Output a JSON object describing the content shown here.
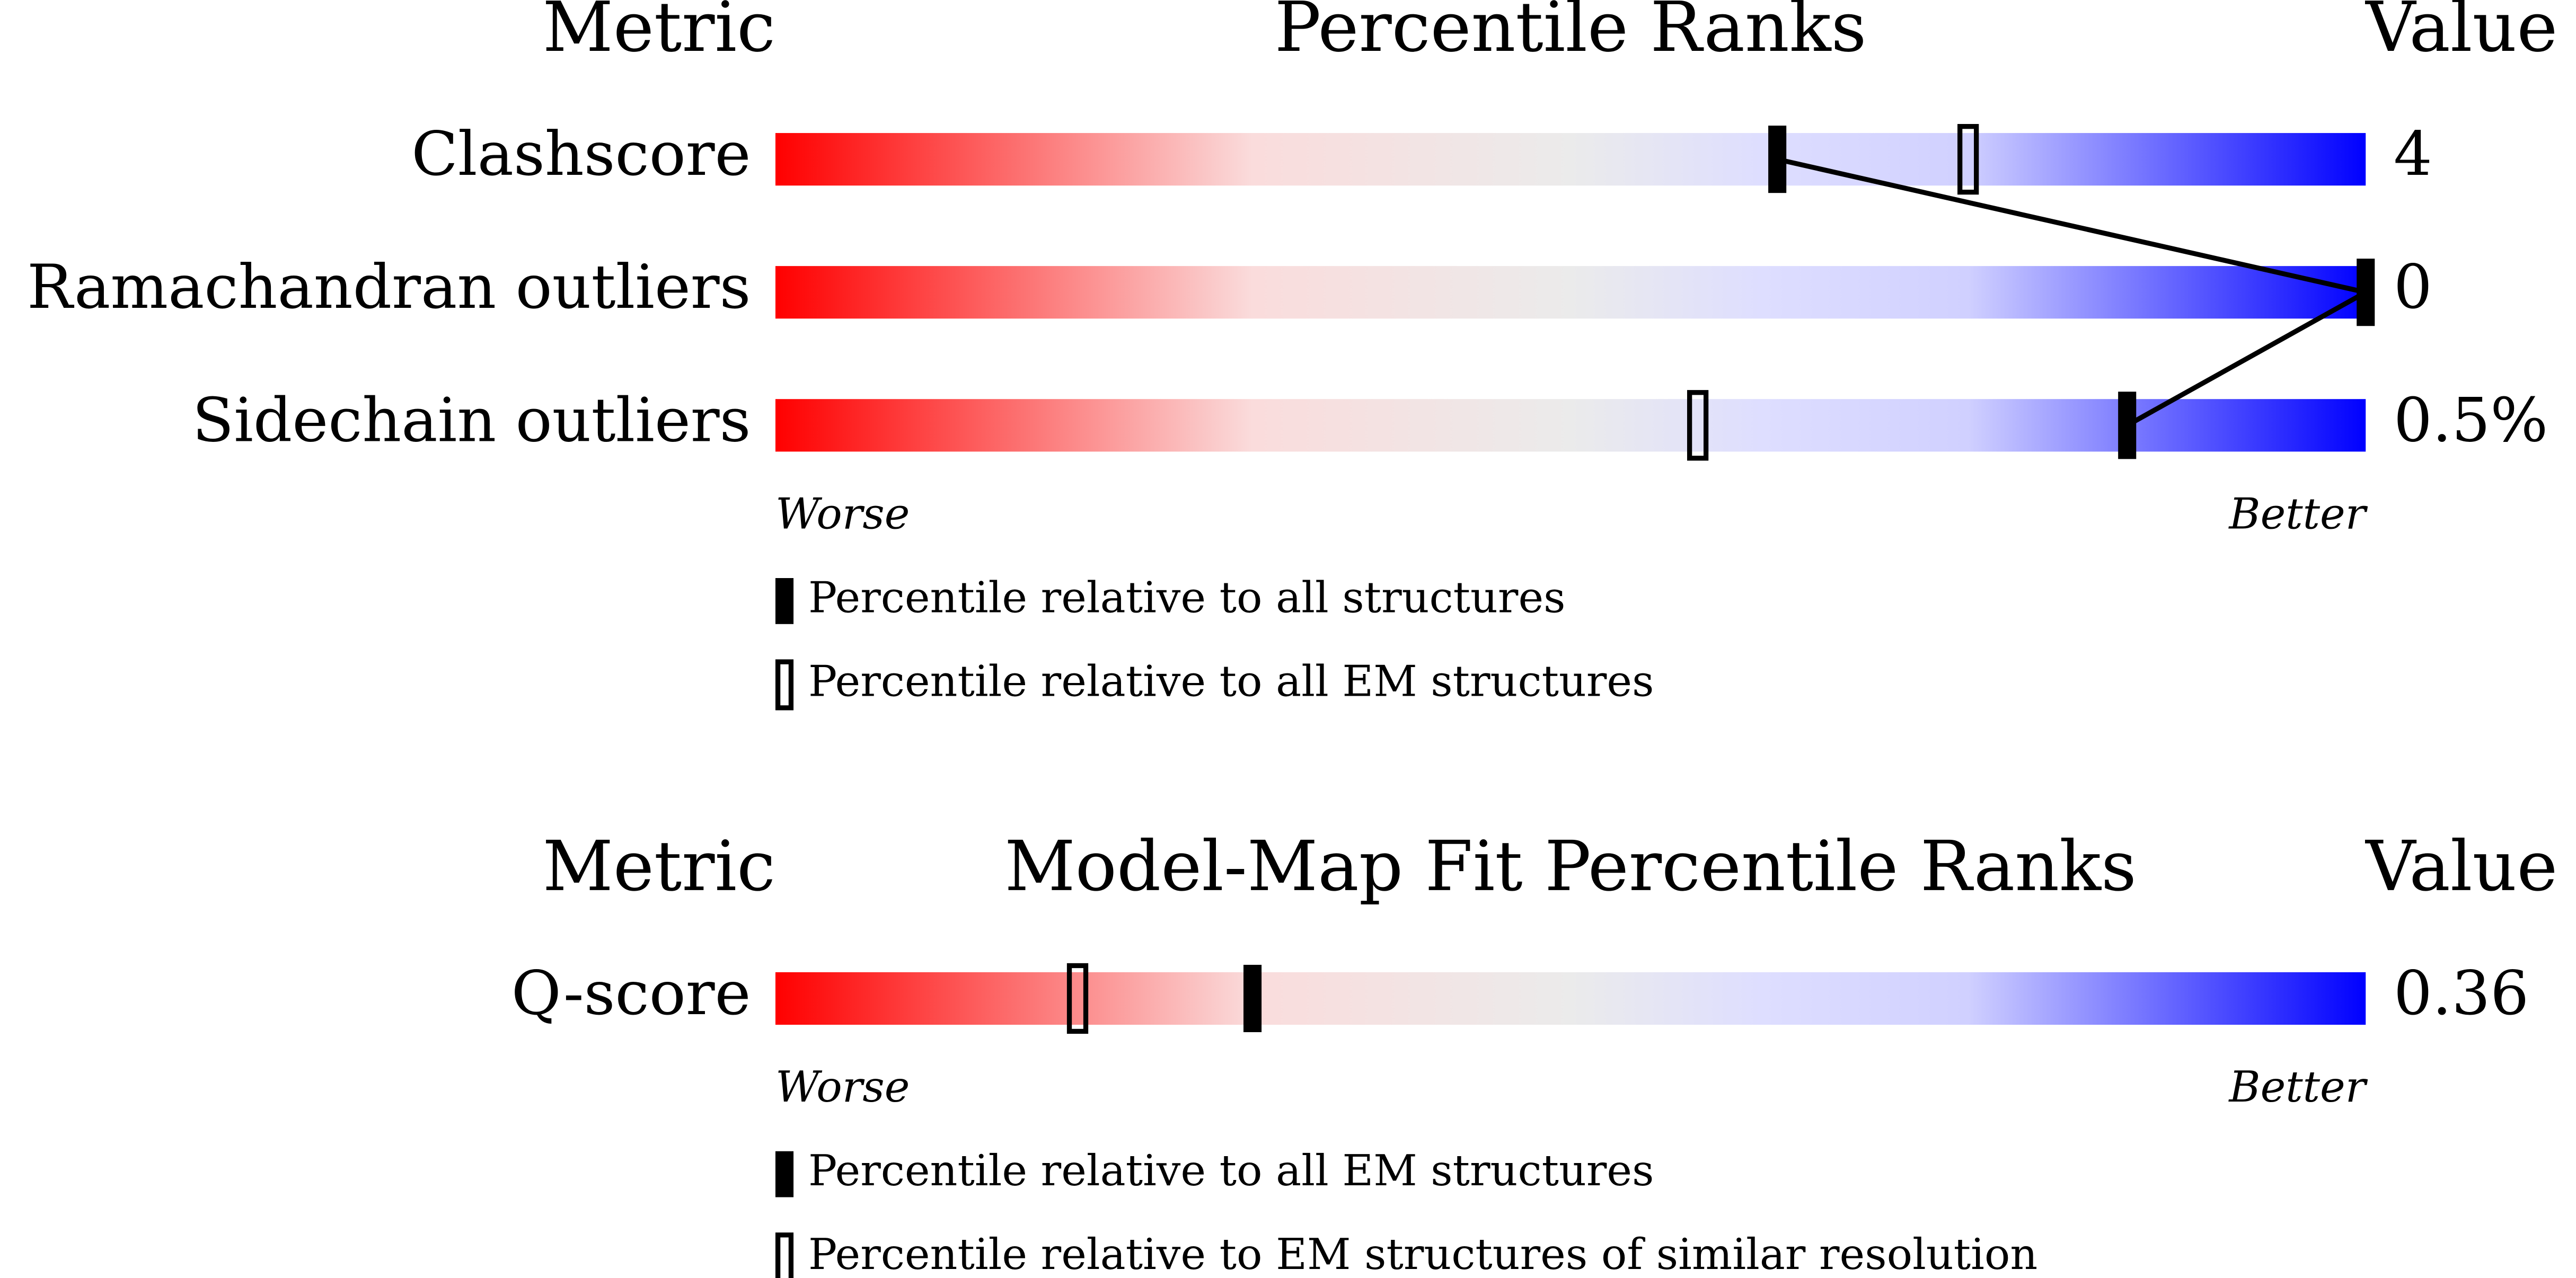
{
  "chart_data": [
    {
      "type": "percentile-slider",
      "header_metric": "Metric",
      "title": "Percentile Ranks",
      "header_value": "Value",
      "categories": [
        "Clashscore",
        "Ramachandran outliers",
        "Sidechain outliers"
      ],
      "metric_values": [
        "4",
        "0",
        "0.5%"
      ],
      "series": [
        {
          "name": "Percentile relative to all structures",
          "style": "filled",
          "color": "#000000",
          "values": [
            63,
            100,
            85
          ]
        },
        {
          "name": "Percentile relative to all EM structures",
          "style": "hollow",
          "color": "#000000",
          "values": [
            75,
            null,
            58
          ]
        }
      ],
      "xlim": [
        0,
        100
      ],
      "worse_label": "Worse",
      "better_label": "Better",
      "connect_filled": true
    },
    {
      "type": "percentile-slider",
      "header_metric": "Metric",
      "title": "Model-Map Fit Percentile Ranks",
      "header_value": "Value",
      "categories": [
        "Q-score"
      ],
      "metric_values": [
        "0.36"
      ],
      "series": [
        {
          "name": "Percentile relative to all EM structures",
          "style": "filled",
          "color": "#000000",
          "values": [
            30
          ]
        },
        {
          "name": "Percentile relative to EM structures of similar resolution",
          "style": "hollow",
          "color": "#000000",
          "values": [
            19
          ]
        }
      ],
      "xlim": [
        0,
        100
      ],
      "worse_label": "Worse",
      "better_label": "Better",
      "connect_filled": false
    }
  ]
}
